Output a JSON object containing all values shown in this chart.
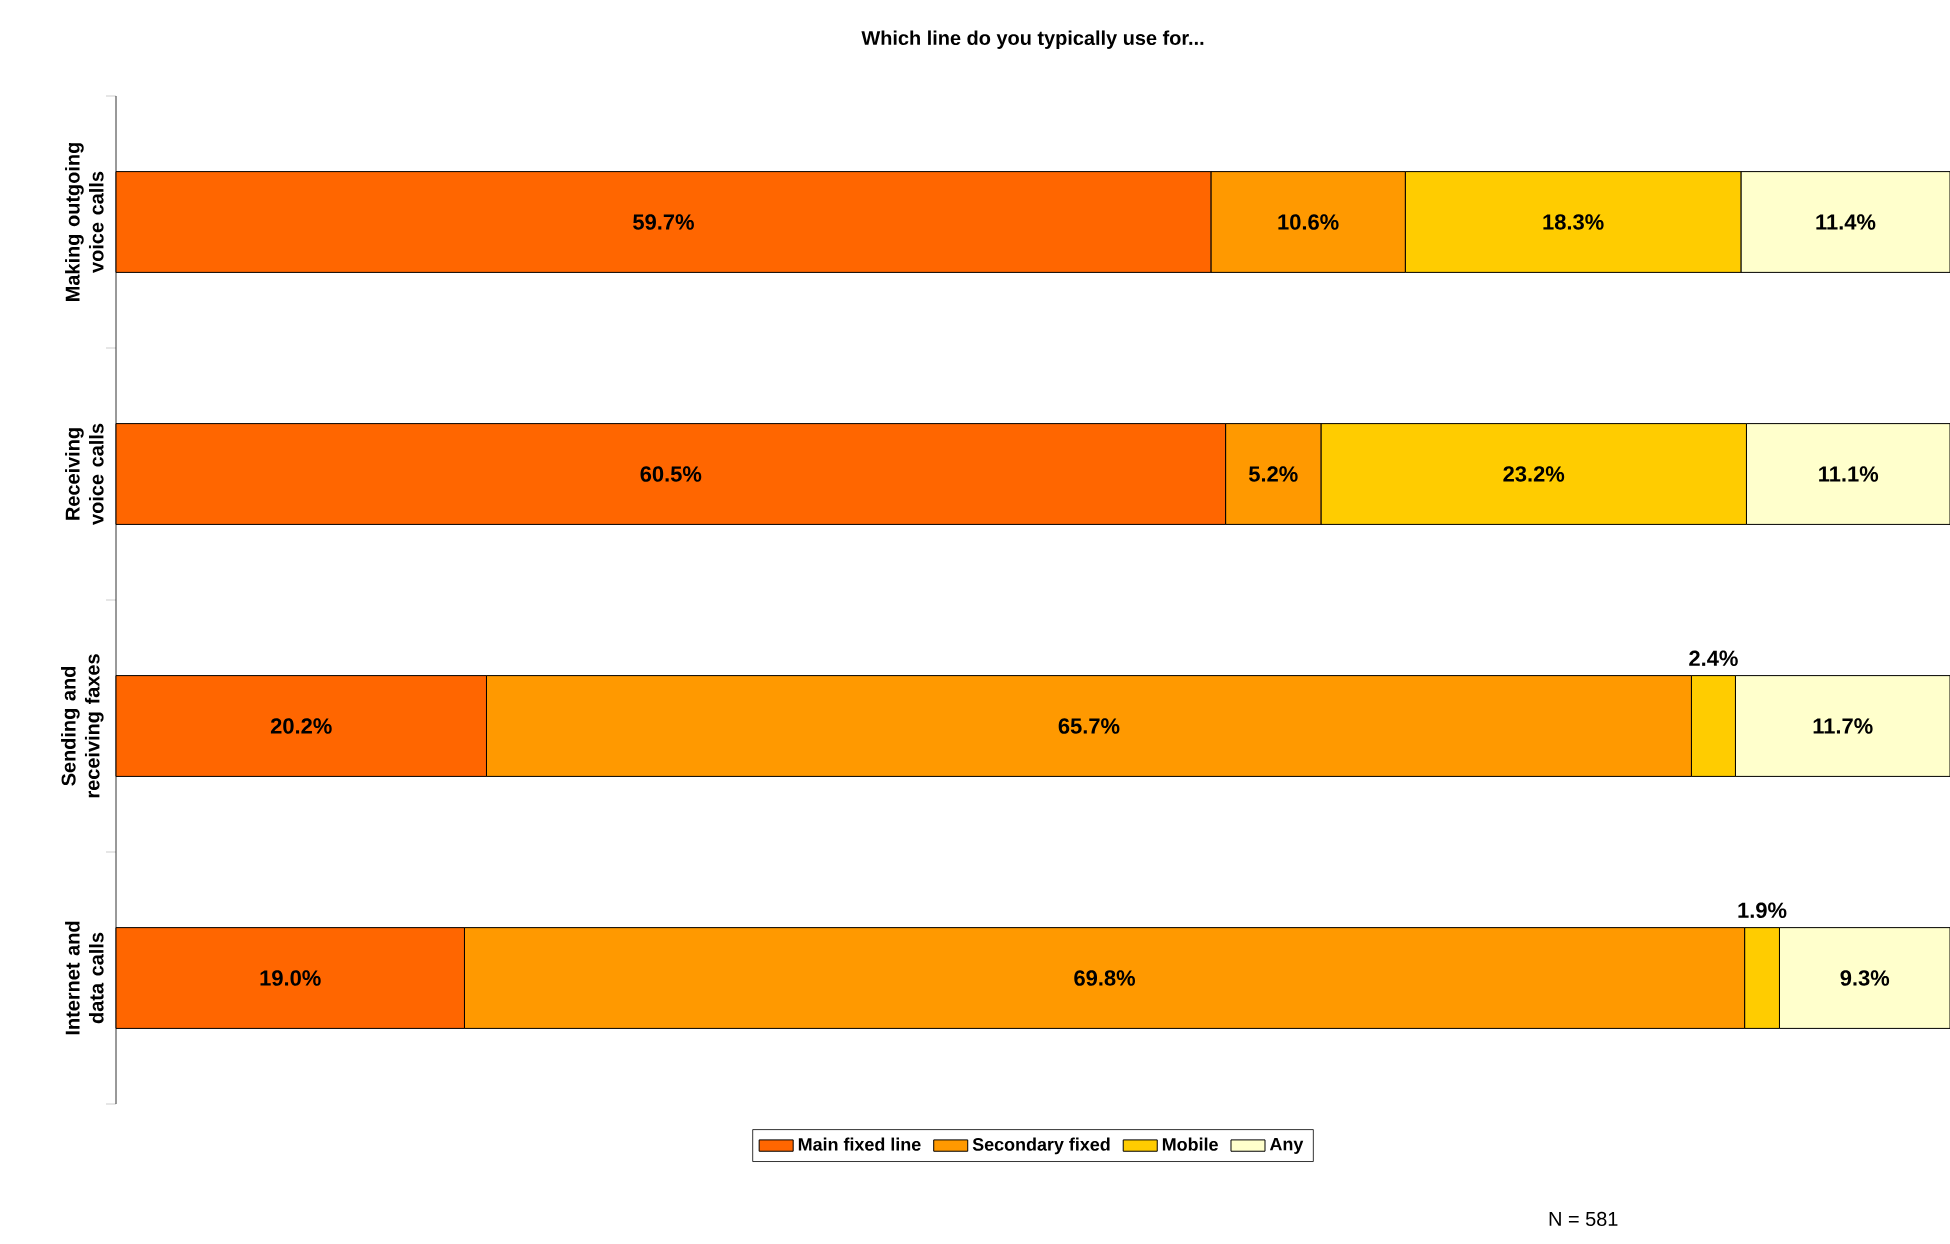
{
  "chart_data": {
    "type": "bar",
    "orientation": "horizontal",
    "stacked": true,
    "title": "Which line do you typically use for...",
    "categories": [
      "Making outgoing voice calls",
      "Receiving voice calls",
      "Sending and receiving faxes",
      "Internet and data calls"
    ],
    "series": [
      {
        "name": "Main fixed line",
        "color": "#ff6600",
        "values": [
          59.7,
          60.5,
          20.2,
          19.0
        ],
        "value_labels": [
          "59.7%",
          "60.5%",
          "20.2%",
          "19.0%"
        ]
      },
      {
        "name": "Secondary fixed",
        "color": "#ff9900",
        "values": [
          10.6,
          5.2,
          65.7,
          69.8
        ],
        "value_labels": [
          "10.6%",
          "5.2%",
          "65.7%",
          "69.8%"
        ]
      },
      {
        "name": "Mobile",
        "color": "#ffcc00",
        "values": [
          18.3,
          23.2,
          2.4,
          1.9
        ],
        "value_labels": [
          "18.3%",
          "23.2%",
          "2.4%",
          "1.9%"
        ]
      },
      {
        "name": "Any",
        "color": "#ffffcc",
        "values": [
          11.4,
          11.1,
          11.7,
          9.3
        ],
        "value_labels": [
          "11.4%",
          "11.1%",
          "11.7%",
          "9.3%"
        ]
      }
    ],
    "legend": "bottom",
    "annotations": [
      "N = 581"
    ]
  }
}
